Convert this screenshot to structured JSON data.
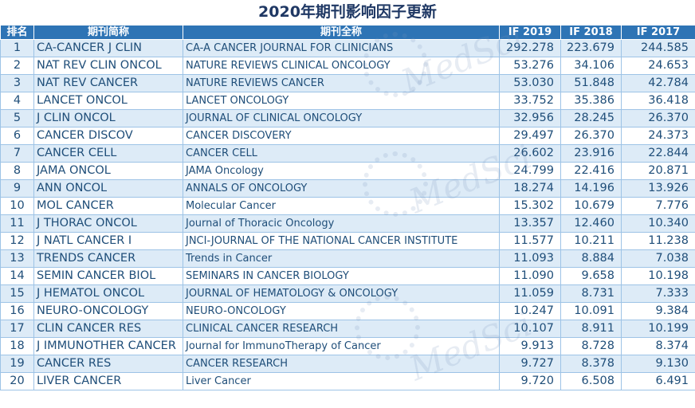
{
  "title": "2020年期刊影响因子更新",
  "headers": {
    "rank": "排名",
    "abbr": "期刊简称",
    "full": "期刊全称",
    "if2019": "IF 2019",
    "if2018": "IF 2018",
    "if2017": "IF 2017"
  },
  "watermark": "MedSci",
  "rows": [
    {
      "rank": "1",
      "abbr": "CA-CANCER J CLIN",
      "full": "CA-A CANCER JOURNAL FOR CLINICIANS",
      "if2019": "292.278",
      "if2018": "223.679",
      "if2017": "244.585"
    },
    {
      "rank": "2",
      "abbr": "NAT REV CLIN ONCOL",
      "full": "NATURE REVIEWS CLINICAL ONCOLOGY",
      "if2019": "53.276",
      "if2018": "34.106",
      "if2017": "24.653"
    },
    {
      "rank": "3",
      "abbr": "NAT REV CANCER",
      "full": "NATURE REVIEWS CANCER",
      "if2019": "53.030",
      "if2018": "51.848",
      "if2017": "42.784"
    },
    {
      "rank": "4",
      "abbr": "LANCET ONCOL",
      "full": "LANCET ONCOLOGY",
      "if2019": "33.752",
      "if2018": "35.386",
      "if2017": "36.418"
    },
    {
      "rank": "5",
      "abbr": "J CLIN ONCOL",
      "full": "JOURNAL OF CLINICAL ONCOLOGY",
      "if2019": "32.956",
      "if2018": "28.245",
      "if2017": "26.370"
    },
    {
      "rank": "6",
      "abbr": "CANCER DISCOV",
      "full": "CANCER DISCOVERY",
      "if2019": "29.497",
      "if2018": "26.370",
      "if2017": "24.373"
    },
    {
      "rank": "7",
      "abbr": "CANCER CELL",
      "full": "CANCER CELL",
      "if2019": "26.602",
      "if2018": "23.916",
      "if2017": "22.844"
    },
    {
      "rank": "8",
      "abbr": "JAMA ONCOL",
      "full": "JAMA Oncology",
      "if2019": "24.799",
      "if2018": "22.416",
      "if2017": "20.871"
    },
    {
      "rank": "9",
      "abbr": "ANN ONCOL",
      "full": "ANNALS OF ONCOLOGY",
      "if2019": "18.274",
      "if2018": "14.196",
      "if2017": "13.926"
    },
    {
      "rank": "10",
      "abbr": "MOL CANCER",
      "full": "Molecular Cancer",
      "if2019": "15.302",
      "if2018": "10.679",
      "if2017": "7.776"
    },
    {
      "rank": "11",
      "abbr": "J THORAC ONCOL",
      "full": "Journal of Thoracic Oncology",
      "if2019": "13.357",
      "if2018": "12.460",
      "if2017": "10.340"
    },
    {
      "rank": "12",
      "abbr": "J NATL CANCER I",
      "full": "JNCI-JOURNAL OF THE NATIONAL CANCER INSTITUTE",
      "if2019": "11.577",
      "if2018": "10.211",
      "if2017": "11.238"
    },
    {
      "rank": "13",
      "abbr": "TRENDS CANCER",
      "full": "Trends in Cancer",
      "if2019": "11.093",
      "if2018": "8.884",
      "if2017": "7.038"
    },
    {
      "rank": "14",
      "abbr": "SEMIN CANCER BIOL",
      "full": "SEMINARS IN CANCER BIOLOGY",
      "if2019": "11.090",
      "if2018": "9.658",
      "if2017": "10.198"
    },
    {
      "rank": "15",
      "abbr": "J HEMATOL ONCOL",
      "full": "JOURNAL OF HEMATOLOGY & ONCOLOGY",
      "if2019": "11.059",
      "if2018": "8.731",
      "if2017": "7.333"
    },
    {
      "rank": "16",
      "abbr": "NEURO-ONCOLOGY",
      "full": "NEURO-ONCOLOGY",
      "if2019": "10.247",
      "if2018": "10.091",
      "if2017": "9.384"
    },
    {
      "rank": "17",
      "abbr": "CLIN CANCER RES",
      "full": "CLINICAL CANCER RESEARCH",
      "if2019": "10.107",
      "if2018": "8.911",
      "if2017": "10.199"
    },
    {
      "rank": "18",
      "abbr": "J IMMUNOTHER CANCER",
      "full": "Journal for ImmunoTherapy of Cancer",
      "if2019": "9.913",
      "if2018": "8.728",
      "if2017": "8.374"
    },
    {
      "rank": "19",
      "abbr": "CANCER RES",
      "full": "CANCER RESEARCH",
      "if2019": "9.727",
      "if2018": "8.378",
      "if2017": "9.130"
    },
    {
      "rank": "20",
      "abbr": "LIVER CANCER",
      "full": "Liver Cancer",
      "if2019": "9.720",
      "if2018": "6.508",
      "if2017": "6.491"
    }
  ]
}
